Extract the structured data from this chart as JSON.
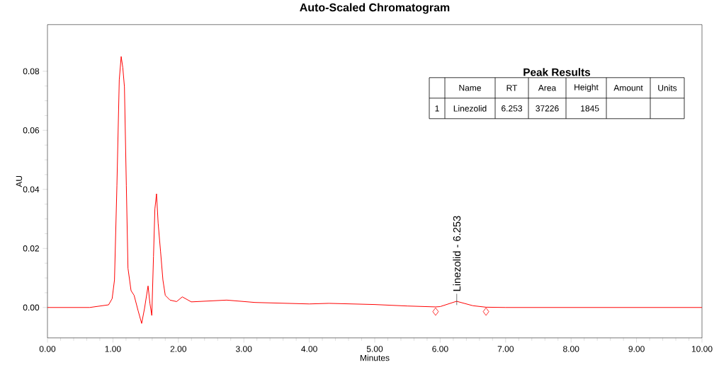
{
  "chart_data": {
    "type": "line",
    "title": "Auto-Scaled Chromatogram",
    "xlabel": "Minutes",
    "ylabel": "AU",
    "xlim": [
      0,
      10
    ],
    "ylim": [
      -0.0103,
      0.0958
    ],
    "xticks": [
      {
        "value": 0,
        "label": "0.00"
      },
      {
        "value": 1,
        "label": "1.00"
      },
      {
        "value": 2,
        "label": "2.00"
      },
      {
        "value": 3,
        "label": "3.00"
      },
      {
        "value": 4,
        "label": "4.00"
      },
      {
        "value": 5,
        "label": "5.00"
      },
      {
        "value": 6,
        "label": "6.00"
      },
      {
        "value": 7,
        "label": "7.00"
      },
      {
        "value": 8,
        "label": "8.00"
      },
      {
        "value": 9,
        "label": "9.00"
      },
      {
        "value": 10,
        "label": "10.00"
      }
    ],
    "yticks": [
      {
        "value": 0,
        "label": "0.00"
      },
      {
        "value": 0.02,
        "label": "0.02"
      },
      {
        "value": 0.04,
        "label": "0.04"
      },
      {
        "value": 0.06,
        "label": "0.06"
      },
      {
        "value": 0.08,
        "label": "0.08"
      }
    ],
    "grid": false,
    "series": [
      {
        "color": "#ff0000",
        "marker": "none",
        "x": [
          0,
          0.645,
          0.934,
          0.988,
          1.024,
          1.061,
          1.097,
          1.126,
          1.151,
          1.176,
          1.205,
          1.23,
          1.277,
          1.324,
          1.385,
          1.439,
          1.483,
          1.537,
          1.566,
          1.594,
          1.62,
          1.641,
          1.666,
          1.691,
          1.728,
          1.764,
          1.8,
          1.872,
          1.973,
          2.06,
          2.197,
          2.738,
          3.171,
          4.0,
          4.3,
          5.0,
          5.5,
          5.93,
          6.0,
          6.25,
          6.5,
          6.7,
          7.0,
          10.0
        ],
        "values": [
          0,
          0,
          0.0009,
          0.003,
          0.0093,
          0.0412,
          0.0771,
          0.085,
          0.0812,
          0.0747,
          0.0412,
          0.0133,
          0.0057,
          0.0041,
          -0.0011,
          -0.0054,
          -0.0003,
          0.0073,
          0.0013,
          -0.0027,
          0.0173,
          0.0333,
          0.0385,
          0.0285,
          0.0189,
          0.0093,
          0.0041,
          0.0025,
          0.002,
          0.0036,
          0.0019,
          0.0025,
          0.0017,
          0.0012,
          0.0014,
          0.001,
          0.0005,
          0.0002,
          0.0003,
          0.0021,
          0.0006,
          0.0001,
          0,
          0
        ]
      },
      {
        "type": "scatter",
        "color": "#ff0000",
        "marker": "diamond",
        "x": [
          5.93,
          6.7
        ],
        "values": [
          -0.0014,
          -0.0014
        ]
      }
    ],
    "annotations": [
      {
        "text": "Linezolid - 6.253",
        "x": 6.253,
        "y": 0.0021
      },
      "Peak Results",
      "Name",
      "RT",
      "Area",
      "Height",
      "Amount",
      "Units",
      "1",
      "Linezolid",
      "6.253",
      "37226",
      "1845"
    ]
  }
}
